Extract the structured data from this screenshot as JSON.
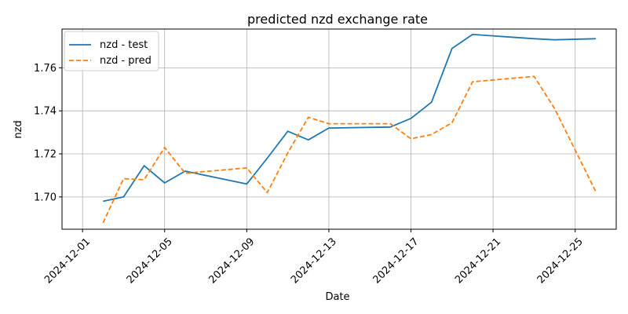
{
  "chart_data": {
    "type": "line",
    "title": "predicted nzd exchange rate",
    "xlabel": "Date",
    "ylabel": "nzd",
    "x_axis_type": "date",
    "xlim": [
      "2024-11-30",
      "2024-12-27"
    ],
    "ylim": [
      1.685,
      1.778
    ],
    "xticks": [
      "2024-12-01",
      "2024-12-05",
      "2024-12-09",
      "2024-12-13",
      "2024-12-17",
      "2024-12-21",
      "2024-12-25"
    ],
    "yticks": [
      1.7,
      1.72,
      1.74,
      1.76
    ],
    "ytick_labels": [
      "1.70",
      "1.72",
      "1.74",
      "1.76"
    ],
    "grid": true,
    "legend_position": "top-left",
    "series": [
      {
        "name": "nzd - test",
        "color": "#1f77b4",
        "style": "solid",
        "x": [
          "2024-12-02",
          "2024-12-03",
          "2024-12-04",
          "2024-12-05",
          "2024-12-06",
          "2024-12-09",
          "2024-12-10",
          "2024-12-11",
          "2024-12-12",
          "2024-12-13",
          "2024-12-16",
          "2024-12-17",
          "2024-12-18",
          "2024-12-19",
          "2024-12-20",
          "2024-12-23",
          "2024-12-24",
          "2024-12-26"
        ],
        "y": [
          1.698,
          1.7,
          1.7145,
          1.7065,
          1.712,
          1.706,
          1.718,
          1.7305,
          1.7265,
          1.732,
          1.7325,
          1.7365,
          1.744,
          1.769,
          1.7755,
          1.7735,
          1.773,
          1.7735
        ]
      },
      {
        "name": "nzd - pred",
        "color": "#ff7f0e",
        "style": "dashed",
        "x": [
          "2024-12-02",
          "2024-12-03",
          "2024-12-04",
          "2024-12-05",
          "2024-12-06",
          "2024-12-09",
          "2024-12-10",
          "2024-12-11",
          "2024-12-12",
          "2024-12-13",
          "2024-12-16",
          "2024-12-17",
          "2024-12-18",
          "2024-12-19",
          "2024-12-20",
          "2024-12-23",
          "2024-12-24",
          "2024-12-26"
        ],
        "y": [
          1.688,
          1.7085,
          1.708,
          1.723,
          1.711,
          1.7135,
          1.702,
          1.7205,
          1.737,
          1.734,
          1.734,
          1.727,
          1.729,
          1.7345,
          1.7535,
          1.756,
          1.741,
          1.7025
        ]
      }
    ]
  }
}
